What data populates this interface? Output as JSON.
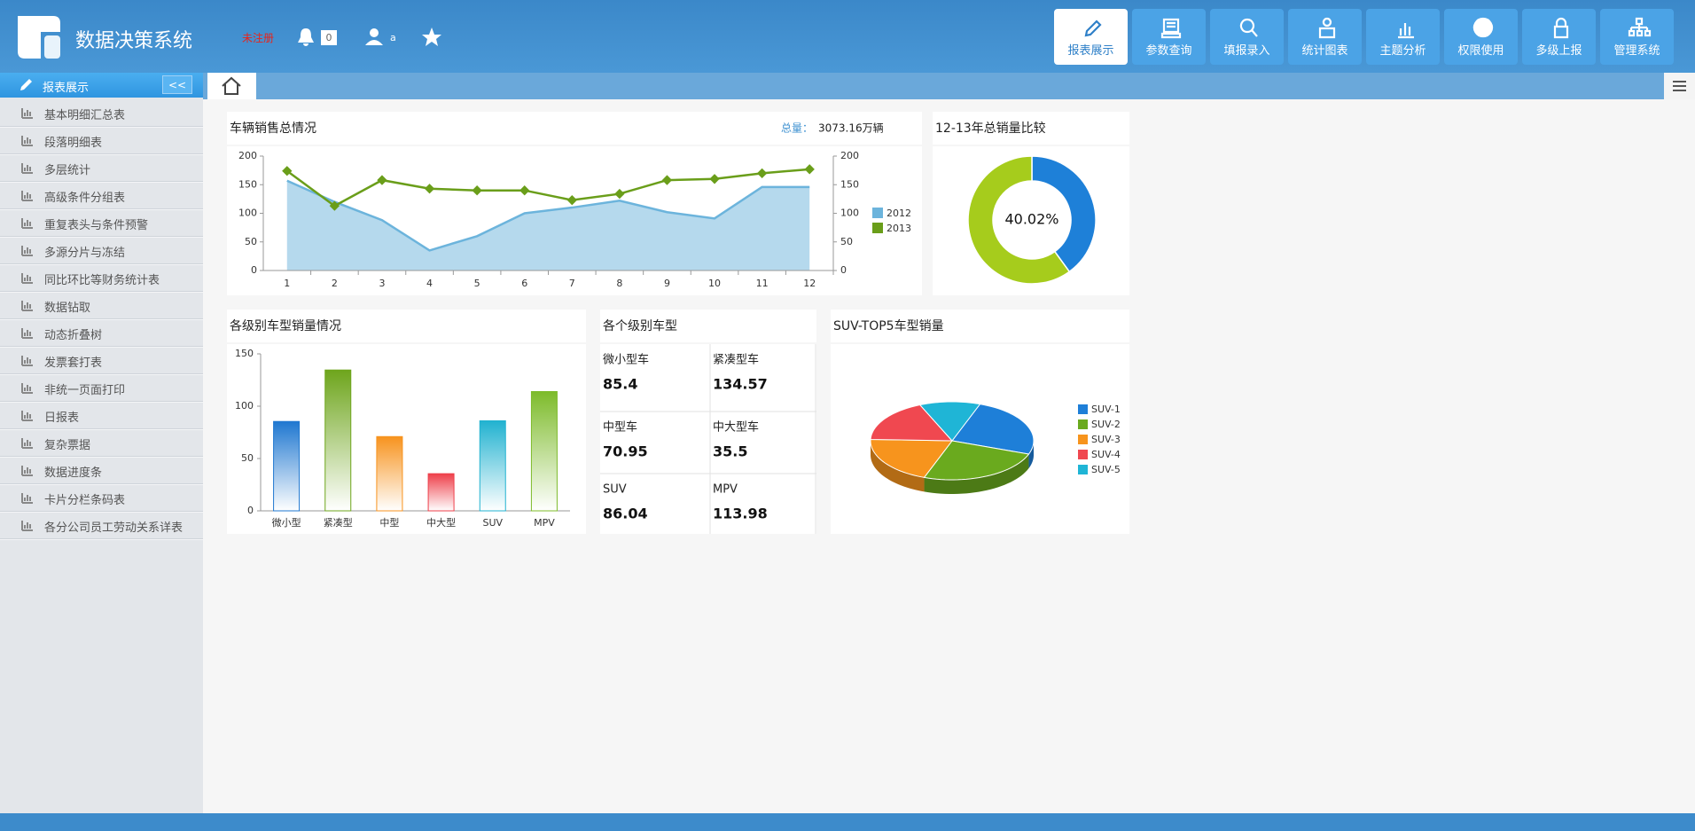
{
  "header": {
    "title": "数据决策系统",
    "unregistered": "未注册",
    "notifications": 0,
    "user": "a",
    "nav": [
      "报表展示",
      "参数查询",
      "填报录入",
      "统计图表",
      "主题分析",
      "权限使用",
      "多级上报",
      "管理系统"
    ]
  },
  "sidebar": {
    "title": "报表展示",
    "collapse": "<<",
    "items": [
      "基本明细汇总表",
      "段落明细表",
      "多层统计",
      "高级条件分组表",
      "重复表头与条件预警",
      "多源分片与冻结",
      "同比环比等财务统计表",
      "数据钻取",
      "动态折叠树",
      "发票套打表",
      "非统一页面打印",
      "日报表",
      "复杂票据",
      "数据进度条",
      "卡片分栏条码表",
      "各分公司员工劳动关系详表"
    ]
  },
  "chart_data": [
    {
      "type": "line",
      "title": "车辆销售总情况",
      "total_label": "总量：",
      "total": "3073.16万辆",
      "categories": [
        1,
        2,
        3,
        4,
        5,
        6,
        7,
        8,
        9,
        10,
        11,
        12
      ],
      "series": [
        {
          "name": "2012",
          "type": "area",
          "color": "#6cb4dc",
          "values": [
            157,
            120,
            88,
            35,
            60,
            100,
            110,
            122,
            102,
            91,
            146,
            146
          ]
        },
        {
          "name": "2013",
          "type": "line",
          "axis": "y2",
          "color": "#6a9e1a",
          "values": [
            174,
            113,
            158,
            143,
            140,
            140,
            123,
            134,
            158,
            160,
            170,
            177
          ]
        }
      ],
      "ylim": [
        0,
        200
      ],
      "yticks": [
        0,
        50,
        100,
        150,
        200
      ],
      "y2lim": [
        0,
        200
      ],
      "y2ticks": [
        0,
        50,
        100,
        150,
        200
      ]
    },
    {
      "type": "donut",
      "title": "12-13年总销量比较",
      "values": [
        40.02,
        59.98
      ],
      "value_labels": [
        "40.02%",
        null
      ],
      "colors": [
        "#1e80d8",
        "#a6cc1c"
      ]
    },
    {
      "type": "bar",
      "title": "各级别车型销量情况",
      "categories": [
        "微小型",
        "紧凑型",
        "中型",
        "中大型",
        "SUV",
        "MPV"
      ],
      "values": [
        85.4,
        134.57,
        70.95,
        35.5,
        86.04,
        113.98
      ],
      "colors": [
        "#1f77d0",
        "#6ea51c",
        "#f7931e",
        "#ee3f4a",
        "#21b2d0",
        "#7dbb2a"
      ],
      "ylim": [
        0,
        150
      ],
      "yticks": [
        0,
        50,
        100,
        150
      ]
    },
    {
      "type": "pie3d",
      "title": "SUV-TOP5车型销量",
      "categories": [
        "SUV-1",
        "SUV-2",
        "SUV-3",
        "SUV-4",
        "SUV-5"
      ],
      "values": [
        25,
        25,
        20,
        18,
        12
      ],
      "colors": [
        "#1e7fd8",
        "#6aaa1e",
        "#f7941d",
        "#f04850",
        "#1fb5d6"
      ]
    }
  ],
  "grade_table": {
    "title": "各个级别车型",
    "cells": [
      {
        "label": "微小型车",
        "value": 85.4
      },
      {
        "label": "紧凑型车",
        "value": 134.57
      },
      {
        "label": "中型车",
        "value": 70.95
      },
      {
        "label": "中大型车",
        "value": 35.5
      },
      {
        "label": "SUV",
        "value": 86.04
      },
      {
        "label": "MPV",
        "value": 113.98
      }
    ]
  }
}
